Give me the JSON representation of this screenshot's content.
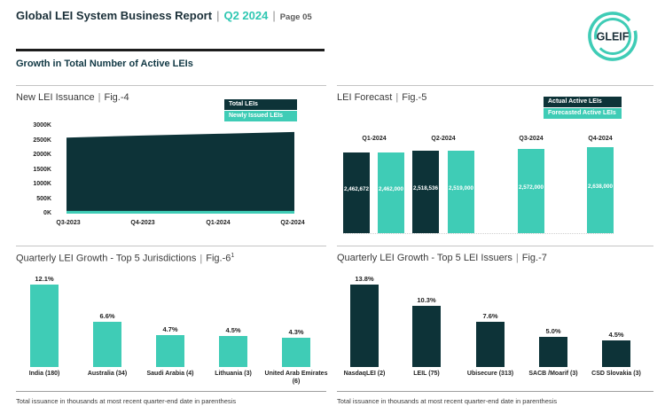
{
  "page": {
    "title": "Global LEI System Business Report",
    "period": "Q2 2024",
    "page_label": "Page 05",
    "sep": "|",
    "section_heading": "Growth in Total Number of Active LEIs",
    "logo_text": "GLEIF"
  },
  "colors": {
    "teal": "#3fccb6",
    "dark_navy": "#0d3338",
    "accent_text": "#2fc7b2",
    "title_text": "#1b3039"
  },
  "footnote": "Total issuance in thousands at most recent quarter-end date in parenthesis",
  "chart_data": [
    {
      "type": "area",
      "title": "New LEI Issuance",
      "fig": "Fig.-4",
      "legend": [
        "Total LEIs",
        "Newly Issued LEIs"
      ],
      "categories": [
        "Q3-2023",
        "Q4-2023",
        "Q1-2024",
        "Q2-2024"
      ],
      "series": [
        {
          "name": "Total LEIs",
          "values": [
            2600000,
            2670000,
            2730000,
            2790000
          ],
          "estimated_from_gridlines": true
        },
        {
          "name": "Newly Issued LEIs",
          "values": [
            95000,
            95000,
            95000,
            95000
          ],
          "estimated_from_gridlines": true
        }
      ],
      "ylim": [
        0,
        3000000
      ],
      "yticks": [
        "3000K",
        "2500K",
        "2000K",
        "1500K",
        "1000K",
        "500K",
        "0K"
      ],
      "legend_position": "top-right",
      "grid": false
    },
    {
      "type": "bar",
      "title": "LEI Forecast",
      "fig": "Fig.-5",
      "legend": [
        "Actual Active LEIs",
        "Forecasted Active LEIs"
      ],
      "categories": [
        "Q1-2024",
        "Q2-2024",
        "Q3-2024",
        "Q4-2024"
      ],
      "series": [
        {
          "name": "Actual Active LEIs",
          "values": [
            2462672,
            2518536,
            null,
            null
          ],
          "labels": [
            "2,462,672",
            "2,518,536",
            "",
            ""
          ]
        },
        {
          "name": "Forecasted Active LEIs",
          "values": [
            2462000,
            2519000,
            2572000,
            2638000
          ],
          "labels": [
            "2,462,000",
            "2,519,000",
            "2,572,000",
            "2,638,000"
          ]
        }
      ],
      "legend_position": "top-right",
      "category_labels_position": "above-bars",
      "grid": false
    },
    {
      "type": "bar",
      "title": "Quarterly LEI Growth - Top 5 Jurisdictions",
      "fig": "Fig.-6",
      "fig_sup": "1",
      "categories": [
        "India (180)",
        "Australia (34)",
        "Saudi Arabia (4)",
        "Lithuania (3)",
        "United Arab Emirates (6)"
      ],
      "values": [
        12.1,
        6.6,
        4.7,
        4.5,
        4.3
      ],
      "labels": [
        "12.1%",
        "6.6%",
        "4.7%",
        "4.5%",
        "4.3%"
      ],
      "bar_color": "#3fccb6",
      "grid": false
    },
    {
      "type": "bar",
      "title": "Quarterly LEI Growth - Top 5 LEI Issuers",
      "fig": "Fig.-7",
      "categories": [
        "NasdaqLEI (2)",
        "LEIL (75)",
        "Ubisecure (313)",
        "SACB /Moarif (3)",
        "CSD Slovakia (3)"
      ],
      "values": [
        13.8,
        10.3,
        7.6,
        5.0,
        4.5
      ],
      "labels": [
        "13.8%",
        "10.3%",
        "7.6%",
        "5.0%",
        "4.5%"
      ],
      "bar_color": "#0d3338",
      "grid": false
    }
  ]
}
